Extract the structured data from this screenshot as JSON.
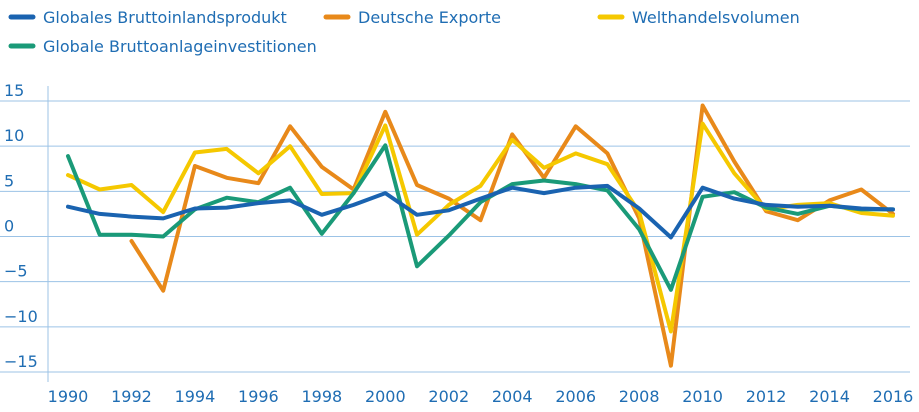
{
  "chart_data": {
    "type": "line",
    "x": [
      1990,
      1991,
      1992,
      1993,
      1994,
      1995,
      1996,
      1997,
      1998,
      1999,
      2000,
      2001,
      2002,
      2003,
      2004,
      2005,
      2006,
      2007,
      2008,
      2009,
      2010,
      2011,
      2012,
      2013,
      2014,
      2015,
      2016
    ],
    "series": [
      {
        "name": "Globales Bruttoinlandsprodukt",
        "color": "#1a63b0",
        "values": [
          3.3,
          2.5,
          2.2,
          2.0,
          3.1,
          3.2,
          3.7,
          4.0,
          2.4,
          3.5,
          4.8,
          2.4,
          2.9,
          4.2,
          5.4,
          4.8,
          5.4,
          5.6,
          3.1,
          -0.1,
          5.4,
          4.2,
          3.5,
          3.3,
          3.4,
          3.1,
          3.0
        ]
      },
      {
        "name": "Deutsche Exporte",
        "color": "#e8891a",
        "values": [
          null,
          null,
          -0.5,
          -6.0,
          7.8,
          6.5,
          5.9,
          12.2,
          7.7,
          5.2,
          13.8,
          5.7,
          4.2,
          1.8,
          11.3,
          6.5,
          12.2,
          9.2,
          2.0,
          -14.3,
          14.5,
          8.3,
          2.8,
          1.8,
          4.0,
          5.2,
          2.5
        ]
      },
      {
        "name": "Welthandelsvolumen",
        "color": "#f5c800",
        "values": [
          6.8,
          5.2,
          5.7,
          2.7,
          9.3,
          9.7,
          7.0,
          10.0,
          4.7,
          4.8,
          12.3,
          0.2,
          3.5,
          5.6,
          10.7,
          7.6,
          9.2,
          8.0,
          2.7,
          -10.5,
          12.5,
          7.0,
          3.0,
          3.5,
          3.7,
          2.6,
          2.3
        ]
      },
      {
        "name": "Globale Bruttoanlageinvestitionen",
        "color": "#1a9a78",
        "values": [
          8.9,
          0.2,
          0.2,
          0.0,
          3.0,
          4.3,
          3.8,
          5.4,
          0.3,
          4.8,
          10.1,
          -3.3,
          0.1,
          3.8,
          5.8,
          6.2,
          5.8,
          5.1,
          0.8,
          -5.9,
          4.4,
          4.9,
          3.2,
          2.5,
          3.4,
          3.0,
          3.0
        ]
      }
    ],
    "xlim": [
      1990,
      2016
    ],
    "xticks": [
      1990,
      1992,
      1994,
      1996,
      1998,
      2000,
      2002,
      2004,
      2006,
      2008,
      2010,
      2012,
      2014,
      2016
    ],
    "ylim": [
      -15,
      15
    ],
    "yticks": [
      {
        "value": -15,
        "label": "−15"
      },
      {
        "value": -10,
        "label": "−10"
      },
      {
        "value": -5,
        "label": "−5"
      },
      0,
      5,
      10,
      15
    ],
    "grid": true
  }
}
